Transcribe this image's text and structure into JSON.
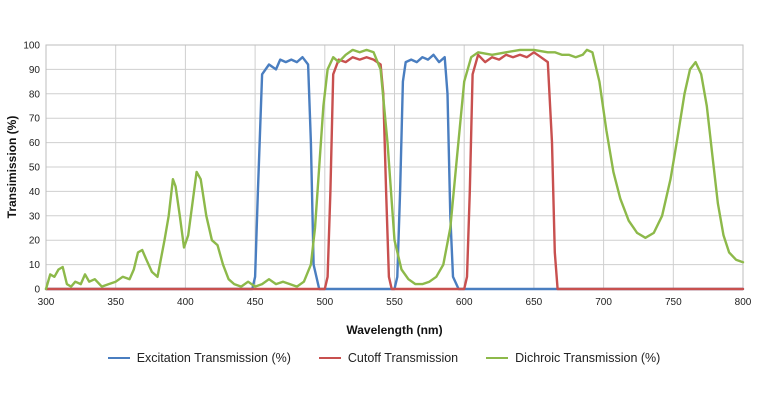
{
  "chart_data": {
    "type": "line",
    "title": "",
    "xlabel": "Wavelength (nm)",
    "ylabel": "Transimission (%)",
    "xlim": [
      300,
      800
    ],
    "ylim": [
      0,
      100
    ],
    "xticks": [
      300,
      350,
      400,
      450,
      500,
      550,
      600,
      650,
      700,
      750,
      800
    ],
    "xtick_labels": [
      "300",
      "350",
      "400",
      "450",
      "500",
      "550",
      "600",
      "650",
      "700",
      "750",
      "800"
    ],
    "yticks": [
      0,
      10,
      20,
      30,
      40,
      50,
      60,
      70,
      80,
      90,
      100
    ],
    "ytick_labels": [
      "0",
      "10",
      "20",
      "30",
      "40",
      "50",
      "60",
      "70",
      "80",
      "90",
      "100"
    ],
    "grid": true,
    "legend_position": "bottom",
    "series": [
      {
        "name": "Excitation Transmission (%)",
        "color": "#4a7ec0",
        "x": [
          300,
          448,
          450,
          452,
          455,
          460,
          465,
          468,
          472,
          476,
          480,
          484,
          488,
          490,
          492,
          496,
          550,
          552,
          554,
          556,
          558,
          562,
          566,
          570,
          574,
          578,
          582,
          586,
          588,
          590,
          592,
          596,
          800
        ],
        "y": [
          0,
          0,
          5,
          40,
          88,
          92,
          90,
          94,
          93,
          94,
          93,
          95,
          92,
          60,
          10,
          0,
          0,
          5,
          40,
          85,
          93,
          94,
          93,
          95,
          94,
          96,
          93,
          95,
          80,
          30,
          5,
          0,
          0
        ]
      },
      {
        "name": "Cutoff Transmission",
        "color": "#c8504f",
        "x": [
          300,
          500,
          502,
          504,
          506,
          510,
          515,
          520,
          525,
          530,
          535,
          540,
          542,
          544,
          546,
          548,
          600,
          602,
          604,
          606,
          610,
          615,
          620,
          625,
          630,
          635,
          640,
          645,
          650,
          655,
          660,
          663,
          665,
          667,
          800
        ],
        "y": [
          0,
          0,
          5,
          40,
          88,
          94,
          93,
          95,
          94,
          95,
          94,
          92,
          80,
          40,
          5,
          0,
          0,
          5,
          40,
          88,
          96,
          93,
          95,
          94,
          96,
          95,
          96,
          95,
          97,
          95,
          93,
          60,
          15,
          0,
          0
        ]
      },
      {
        "name": "Dichroic Transmission (%)",
        "color": "#8db94a",
        "x": [
          300,
          303,
          306,
          309,
          312,
          315,
          318,
          321,
          325,
          328,
          331,
          335,
          340,
          345,
          350,
          355,
          360,
          363,
          366,
          369,
          372,
          376,
          380,
          385,
          388,
          391,
          393,
          396,
          399,
          402,
          405,
          408,
          411,
          415,
          419,
          423,
          427,
          431,
          435,
          440,
          445,
          450,
          455,
          460,
          465,
          470,
          475,
          480,
          485,
          490,
          493,
          496,
          499,
          502,
          506,
          510,
          515,
          520,
          525,
          530,
          535,
          540,
          545,
          550,
          555,
          560,
          565,
          570,
          575,
          580,
          585,
          590,
          595,
          600,
          605,
          610,
          620,
          630,
          640,
          650,
          660,
          665,
          670,
          675,
          680,
          685,
          688,
          692,
          697,
          702,
          707,
          712,
          718,
          724,
          730,
          736,
          742,
          748,
          753,
          758,
          762,
          766,
          770,
          774,
          778,
          782,
          786,
          790,
          795,
          800
        ],
        "y": [
          0,
          6,
          5,
          8,
          9,
          2,
          1,
          3,
          2,
          6,
          3,
          4,
          1,
          2,
          3,
          5,
          4,
          8,
          15,
          16,
          12,
          7,
          5,
          20,
          30,
          45,
          42,
          30,
          17,
          22,
          35,
          48,
          45,
          30,
          20,
          18,
          10,
          4,
          2,
          1,
          3,
          1,
          2,
          4,
          2,
          3,
          2,
          1,
          3,
          10,
          25,
          50,
          75,
          90,
          95,
          93,
          96,
          98,
          97,
          98,
          97,
          90,
          60,
          20,
          8,
          4,
          2,
          2,
          3,
          5,
          10,
          25,
          55,
          85,
          95,
          97,
          96,
          97,
          98,
          98,
          97,
          97,
          96,
          96,
          95,
          96,
          98,
          97,
          85,
          65,
          48,
          37,
          28,
          23,
          21,
          23,
          30,
          45,
          62,
          80,
          90,
          93,
          88,
          75,
          55,
          35,
          22,
          15,
          12,
          11
        ]
      }
    ]
  }
}
